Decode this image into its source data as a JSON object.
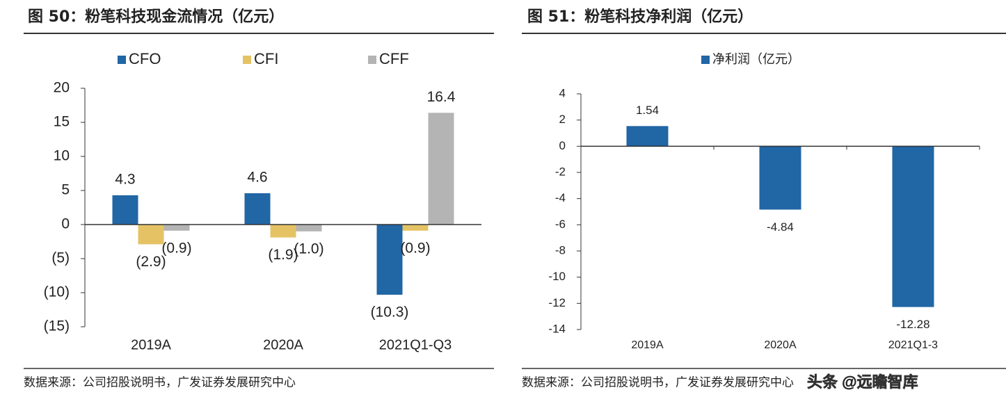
{
  "chart_data": [
    {
      "type": "bar",
      "title": "图 50：粉笔科技现金流情况（亿元）",
      "categories": [
        "2019A",
        "2020A",
        "2021Q1-Q3"
      ],
      "series": [
        {
          "name": "CFO",
          "color": "#2166a5",
          "values": [
            4.3,
            4.6,
            -10.3
          ],
          "value_labels": [
            "4.3",
            "4.6",
            "(10.3)"
          ]
        },
        {
          "name": "CFI",
          "color": "#e5c365",
          "values": [
            -2.9,
            -1.9,
            -0.9
          ],
          "value_labels": [
            "(2.9)",
            "(1.9)",
            "(0.9)"
          ]
        },
        {
          "name": "CFF",
          "color": "#b4b4b4",
          "values": [
            -0.9,
            -1.0,
            16.4
          ],
          "value_labels": [
            "(0.9)",
            "(1.0)",
            "16.4"
          ]
        }
      ],
      "ylim": [
        -15,
        20
      ],
      "yticks": [
        {
          "value": -15,
          "label": "(15)"
        },
        {
          "value": -10,
          "label": "(10)"
        },
        {
          "value": -5,
          "label": "(5)"
        },
        0,
        5,
        10,
        15,
        20
      ],
      "source": "数据来源：公司招股说明书，广发证券发展研究中心"
    },
    {
      "type": "bar",
      "title": "图 51：粉笔科技净利润（亿元）",
      "categories": [
        "2019A",
        "2020A",
        "2021Q1-3"
      ],
      "series": [
        {
          "name": "净利润（亿元）",
          "color": "#2166a5",
          "values": [
            1.54,
            -4.84,
            -12.28
          ]
        }
      ],
      "ylim": [
        -14,
        4
      ],
      "yticks": [
        -14,
        -12,
        -10,
        -8,
        -6,
        -4,
        -2,
        0,
        2,
        4
      ],
      "source": "数据来源：公司招股说明书，广发证券发展研究中心"
    }
  ],
  "watermark": "头条 @远瞻智库"
}
